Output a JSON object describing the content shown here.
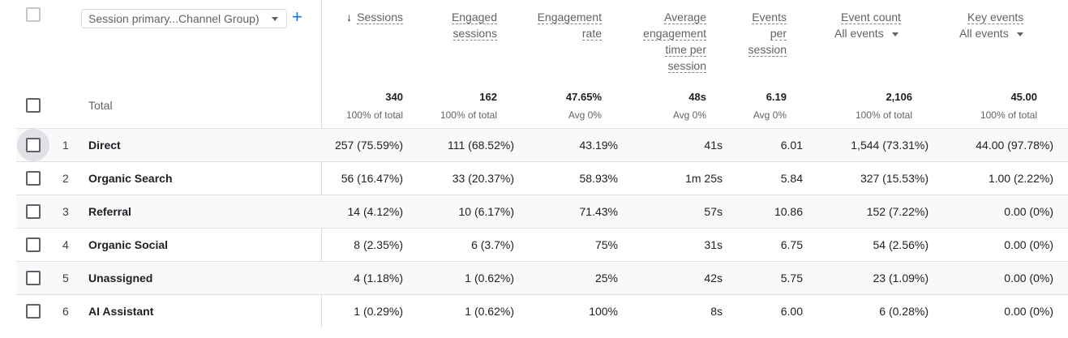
{
  "dimension": {
    "label": "Session primary...Channel Group)"
  },
  "columns": [
    {
      "key": "sessions",
      "lines": [
        "Sessions"
      ],
      "sorted": true
    },
    {
      "key": "engaged_sessions",
      "lines": [
        "Engaged",
        "sessions"
      ]
    },
    {
      "key": "engagement_rate",
      "lines": [
        "Engagement",
        "rate"
      ]
    },
    {
      "key": "avg_engagement_time",
      "lines": [
        "Average",
        "engagement",
        "time per",
        "session"
      ]
    },
    {
      "key": "events_per_session",
      "lines": [
        "Events",
        "per",
        "session"
      ]
    },
    {
      "key": "event_count",
      "lines": [
        "Event count"
      ],
      "sub": "All events"
    },
    {
      "key": "key_events",
      "lines": [
        "Key events"
      ],
      "sub": "All events"
    }
  ],
  "totals": {
    "label": "Total",
    "values": [
      "340",
      "162",
      "47.65%",
      "48s",
      "6.19",
      "2,106",
      "45.00"
    ],
    "subs": [
      "100% of total",
      "100% of total",
      "Avg 0%",
      "Avg 0%",
      "Avg 0%",
      "100% of total",
      "100% of total"
    ]
  },
  "rows": [
    {
      "index": "1",
      "name": "Direct",
      "values": [
        "257 (75.59%)",
        "111 (68.52%)",
        "43.19%",
        "41s",
        "6.01",
        "1,544 (73.31%)",
        "44.00 (97.78%)"
      ]
    },
    {
      "index": "2",
      "name": "Organic Search",
      "values": [
        "56 (16.47%)",
        "33 (20.37%)",
        "58.93%",
        "1m 25s",
        "5.84",
        "327 (15.53%)",
        "1.00 (2.22%)"
      ]
    },
    {
      "index": "3",
      "name": "Referral",
      "values": [
        "14 (4.12%)",
        "10 (6.17%)",
        "71.43%",
        "57s",
        "10.86",
        "152 (7.22%)",
        "0.00 (0%)"
      ]
    },
    {
      "index": "4",
      "name": "Organic Social",
      "values": [
        "8 (2.35%)",
        "6 (3.7%)",
        "75%",
        "31s",
        "6.75",
        "54 (2.56%)",
        "0.00 (0%)"
      ]
    },
    {
      "index": "5",
      "name": "Unassigned",
      "values": [
        "4 (1.18%)",
        "1 (0.62%)",
        "25%",
        "42s",
        "5.75",
        "23 (1.09%)",
        "0.00 (0%)"
      ]
    },
    {
      "index": "6",
      "name": "AI Assistant",
      "values": [
        "1 (0.29%)",
        "1 (0.62%)",
        "100%",
        "8s",
        "6.00",
        "6 (0.28%)",
        "0.00 (0%)"
      ]
    }
  ]
}
